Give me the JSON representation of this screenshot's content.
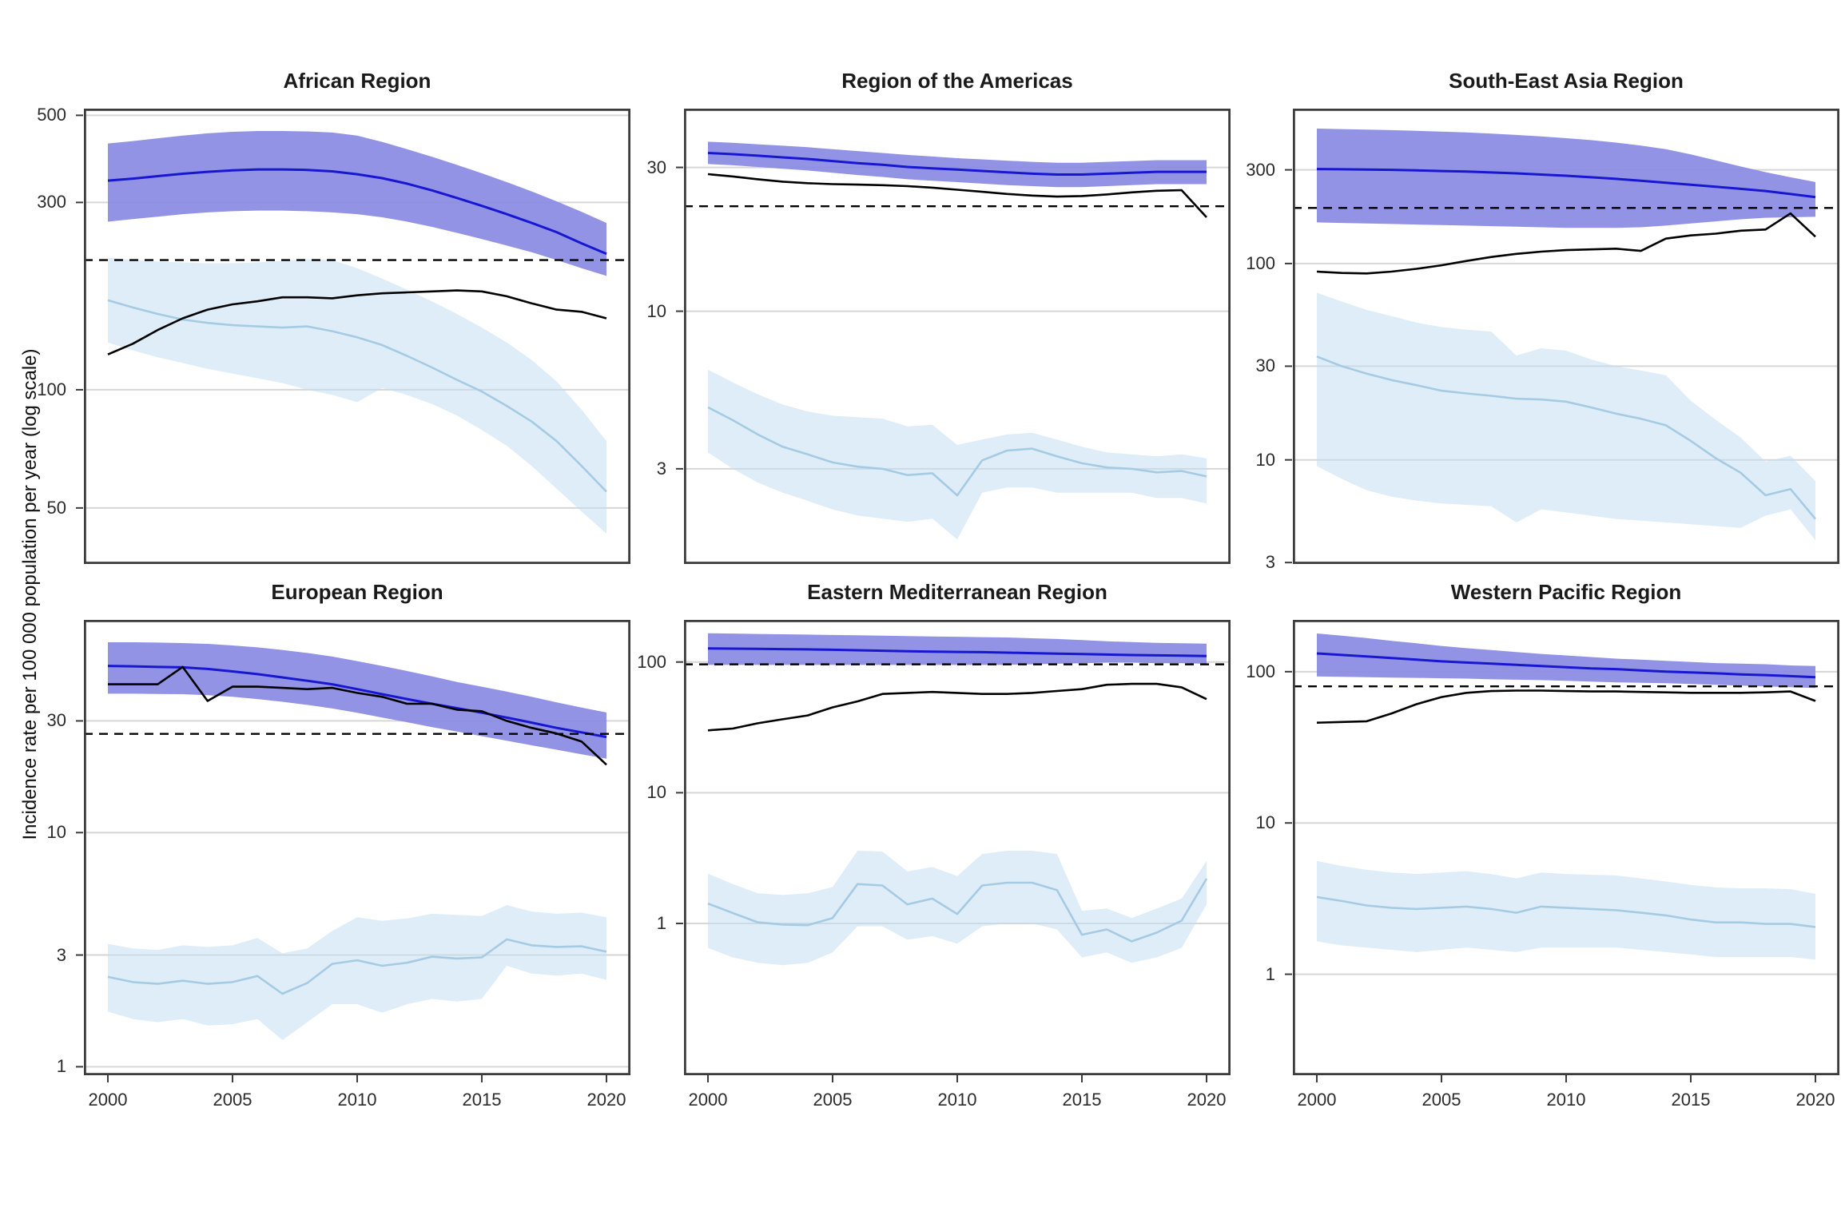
{
  "figure": {
    "y_axis_label": "Incidence rate per 100 000 population per year (log scale)",
    "years": [
      2000,
      2001,
      2002,
      2003,
      2004,
      2005,
      2006,
      2007,
      2008,
      2009,
      2010,
      2011,
      2012,
      2013,
      2014,
      2015,
      2016,
      2017,
      2018,
      2019,
      2020
    ],
    "x_ticks": [
      2000,
      2005,
      2010,
      2015,
      2020
    ],
    "colors": {
      "blue_line": "#1717d1",
      "blue_band": "#8a8ae4",
      "light_blue_line": "#a5cbe4",
      "light_blue_band": "#c4dff2",
      "black_line": "#000000",
      "dashed_line": "#000000",
      "gridline": "#d6d6d6",
      "panel_border": "#3c3c3c",
      "text": "#2b2b2b"
    }
  },
  "chart_data": [
    {
      "type": "line",
      "title": "African Region",
      "y_ticks": [
        500,
        300,
        100,
        50
      ],
      "y_domain": [
        36,
        520
      ],
      "x_range": [
        2000,
        2020
      ],
      "x_ticks": [
        2000,
        2005,
        2010,
        2015,
        2020
      ],
      "grid": "horizontal-only",
      "legend": "none",
      "dashed_reference": 214,
      "series": {
        "blue_line": [
          341,
          345,
          350,
          355,
          359,
          362,
          364,
          364,
          363,
          360,
          354,
          346,
          335,
          322,
          308,
          294,
          280,
          266,
          252,
          236,
          222
        ],
        "blue_band_upper": [
          424,
          430,
          437,
          444,
          450,
          454,
          456,
          456,
          455,
          452,
          444,
          428,
          410,
          392,
          374,
          356,
          338,
          320,
          302,
          284,
          266
        ],
        "blue_band_lower": [
          268,
          272,
          276,
          280,
          283,
          285,
          286,
          286,
          285,
          283,
          280,
          275,
          268,
          260,
          251,
          242,
          233,
          224,
          214,
          204,
          195
        ],
        "light_blue_line": [
          169,
          162,
          156,
          151,
          148,
          146,
          145,
          144,
          145,
          141,
          136,
          130,
          122,
          114,
          106,
          99,
          91,
          83,
          74,
          64,
          55
        ],
        "light_blue_band_upper": [
          217,
          214,
          212,
          211,
          210,
          210,
          211,
          213,
          215,
          214,
          204,
          192,
          180,
          168,
          156,
          144,
          132,
          119,
          105,
          89,
          74
        ],
        "light_blue_band_lower": [
          132,
          126,
          121,
          117,
          113,
          110,
          107,
          104,
          100,
          97,
          93,
          101,
          97,
          92,
          86,
          79,
          72,
          64,
          56,
          49,
          43
        ],
        "black_line": [
          123,
          131,
          142,
          152,
          160,
          165,
          168,
          172,
          172,
          171,
          174,
          176,
          177,
          178,
          179,
          178,
          173,
          166,
          160,
          158,
          152
        ]
      }
    },
    {
      "type": "line",
      "title": "Region of the Americas",
      "y_ticks": [
        30,
        10,
        3
      ],
      "y_domain": [
        1.45,
        47
      ],
      "x_range": [
        2000,
        2020
      ],
      "x_ticks": [
        2000,
        2005,
        2010,
        2015,
        2020
      ],
      "grid": "horizontal-only",
      "legend": "none",
      "dashed_reference": 22.3,
      "series": {
        "blue_line": [
          33.5,
          33.2,
          32.8,
          32.4,
          32.0,
          31.5,
          31.0,
          30.6,
          30.1,
          29.8,
          29.5,
          29.2,
          28.9,
          28.6,
          28.4,
          28.4,
          28.6,
          28.8,
          29.0,
          29.0,
          29.0
        ],
        "blue_band_upper": [
          36.5,
          36.2,
          35.8,
          35.4,
          35.0,
          34.5,
          34.0,
          33.5,
          33.0,
          32.6,
          32.2,
          31.9,
          31.6,
          31.3,
          31.1,
          31.1,
          31.3,
          31.5,
          31.7,
          31.7,
          31.7
        ],
        "blue_band_lower": [
          30.8,
          30.5,
          30.1,
          29.7,
          29.3,
          28.8,
          28.3,
          27.9,
          27.4,
          27.1,
          26.8,
          26.5,
          26.2,
          26.0,
          25.8,
          25.8,
          26.0,
          26.2,
          26.4,
          26.4,
          26.4
        ],
        "light_blue_line": [
          4.8,
          4.35,
          3.9,
          3.55,
          3.35,
          3.15,
          3.05,
          3.0,
          2.86,
          2.9,
          2.45,
          3.2,
          3.45,
          3.5,
          3.3,
          3.13,
          3.03,
          3.0,
          2.92,
          2.95,
          2.83
        ],
        "light_blue_band_upper": [
          6.4,
          5.8,
          5.3,
          4.9,
          4.65,
          4.5,
          4.45,
          4.4,
          4.15,
          4.2,
          3.6,
          3.75,
          3.9,
          3.95,
          3.75,
          3.55,
          3.4,
          3.35,
          3.3,
          3.35,
          3.25
        ],
        "light_blue_band_lower": [
          3.4,
          3.0,
          2.7,
          2.5,
          2.35,
          2.2,
          2.1,
          2.05,
          2.0,
          2.05,
          1.75,
          2.5,
          2.6,
          2.6,
          2.5,
          2.5,
          2.5,
          2.5,
          2.4,
          2.4,
          2.3
        ],
        "black_line": [
          28.5,
          28.0,
          27.4,
          26.9,
          26.6,
          26.4,
          26.3,
          26.2,
          26.0,
          25.7,
          25.3,
          24.9,
          24.5,
          24.2,
          24.0,
          24.1,
          24.4,
          24.8,
          25.1,
          25.2,
          20.5
        ]
      }
    },
    {
      "type": "line",
      "title": "South-East Asia Region",
      "y_ticks": [
        300,
        100,
        30,
        10,
        3
      ],
      "y_domain": [
        2.95,
        615
      ],
      "x_range": [
        2000,
        2020
      ],
      "x_ticks": [
        2000,
        2005,
        2010,
        2015,
        2020
      ],
      "grid": "horizontal-only",
      "legend": "none",
      "dashed_reference": 192,
      "series": {
        "blue_line": [
          303,
          302,
          301,
          300,
          298,
          296,
          294,
          291,
          288,
          284,
          280,
          275,
          270,
          264,
          258,
          252,
          246,
          240,
          234,
          226,
          218
        ],
        "blue_band_upper": [
          487,
          484,
          481,
          478,
          474,
          470,
          465,
          459,
          452,
          444,
          435,
          425,
          413,
          399,
          382,
          360,
          335,
          312,
          292,
          275,
          260
        ],
        "blue_band_lower": [
          162,
          161,
          160,
          159,
          158,
          157,
          156,
          155,
          154,
          153,
          152,
          152,
          152,
          153,
          156,
          160,
          164,
          168,
          171,
          172,
          173
        ],
        "light_blue_line": [
          33.6,
          30,
          27.5,
          25.5,
          24,
          22.5,
          21.8,
          21.2,
          20.5,
          20.3,
          19.8,
          18.5,
          17.2,
          16.2,
          15,
          12.5,
          10.2,
          8.6,
          6.6,
          7.1,
          5.0
        ],
        "light_blue_band_upper": [
          71,
          64,
          58,
          54,
          50,
          47.5,
          46,
          45,
          34,
          37,
          36,
          32.5,
          30,
          28.5,
          27,
          20,
          16,
          13,
          9.8,
          10.5,
          7.8
        ],
        "light_blue_band_lower": [
          9.3,
          8,
          7,
          6.5,
          6.2,
          6.0,
          5.9,
          5.8,
          4.8,
          5.6,
          5.4,
          5.2,
          5.0,
          4.9,
          4.8,
          4.7,
          4.6,
          4.5,
          5.2,
          5.6,
          3.9
        ],
        "black_line": [
          91,
          89.5,
          89,
          91,
          94,
          98,
          103,
          108,
          112,
          115,
          117,
          118,
          119,
          116,
          134,
          139,
          142,
          147,
          149,
          180,
          137
        ]
      }
    },
    {
      "type": "line",
      "title": "European Region",
      "y_ticks": [
        30,
        10,
        3,
        1
      ],
      "y_domain": [
        0.92,
        81
      ],
      "x_range": [
        2000,
        2020
      ],
      "x_ticks": [
        2000,
        2005,
        2010,
        2015,
        2020
      ],
      "grid": "horizontal-only",
      "legend": "none",
      "dashed_reference": 26.4,
      "series": {
        "blue_line": [
          51.5,
          51.3,
          51.0,
          50.8,
          50.0,
          48.8,
          47.5,
          46.0,
          44.5,
          43.0,
          41.0,
          39.0,
          37.2,
          35.5,
          34.0,
          32.5,
          31.0,
          29.5,
          28.0,
          26.8,
          25.6
        ],
        "blue_band_upper": [
          65,
          65,
          64.8,
          64.5,
          64,
          63,
          61.8,
          60.3,
          58.5,
          56.5,
          54,
          51.5,
          49,
          46.5,
          44,
          42,
          40,
          38,
          36,
          34.2,
          32.6
        ],
        "blue_band_lower": [
          39.2,
          39.2,
          39.1,
          39.0,
          38.6,
          38.0,
          37.2,
          36.2,
          35.1,
          33.9,
          32.5,
          31.0,
          29.6,
          28.2,
          27.0,
          25.8,
          24.7,
          23.6,
          22.6,
          21.6,
          20.7
        ],
        "light_blue_line": [
          2.42,
          2.3,
          2.26,
          2.33,
          2.26,
          2.3,
          2.44,
          2.05,
          2.28,
          2.75,
          2.85,
          2.7,
          2.78,
          2.95,
          2.9,
          2.93,
          3.5,
          3.3,
          3.25,
          3.27,
          3.1
        ],
        "light_blue_band_upper": [
          3.35,
          3.2,
          3.15,
          3.3,
          3.25,
          3.3,
          3.55,
          3.05,
          3.2,
          3.8,
          4.35,
          4.2,
          4.3,
          4.5,
          4.45,
          4.4,
          4.9,
          4.6,
          4.5,
          4.55,
          4.35
        ],
        "light_blue_band_lower": [
          1.72,
          1.6,
          1.55,
          1.6,
          1.5,
          1.52,
          1.6,
          1.3,
          1.55,
          1.85,
          1.85,
          1.7,
          1.85,
          1.95,
          1.9,
          1.95,
          2.7,
          2.5,
          2.45,
          2.5,
          2.35
        ],
        "black_line": [
          43,
          43,
          43,
          51,
          36.5,
          42,
          42,
          41.5,
          41,
          41.5,
          39.5,
          38,
          35.5,
          35.5,
          33.5,
          33,
          30,
          28,
          26.5,
          24.5,
          19.5
        ]
      }
    },
    {
      "type": "line",
      "title": "Eastern Mediterranean Region",
      "y_ticks": [
        100,
        10,
        1
      ],
      "y_domain": [
        0.069,
        210
      ],
      "x_range": [
        2000,
        2020
      ],
      "x_ticks": [
        2000,
        2005,
        2010,
        2015,
        2020
      ],
      "grid": "horizontal-only",
      "legend": "none",
      "dashed_reference": 96,
      "series": {
        "blue_line": [
          127,
          126.5,
          126,
          125.5,
          125,
          124,
          123,
          122,
          121,
          120,
          119.5,
          119,
          118,
          117,
          116,
          115,
          114,
          113,
          112.5,
          112,
          111
        ],
        "blue_band_upper": [
          166,
          165,
          164,
          163,
          162,
          161,
          160,
          159,
          158,
          157,
          156,
          155,
          154,
          152,
          150,
          147,
          144,
          142,
          140,
          139,
          138
        ],
        "blue_band_lower": [
          95,
          95,
          95,
          95,
          95,
          95,
          95,
          95,
          95,
          95,
          95,
          95,
          95,
          96,
          97,
          98,
          99,
          99,
          98,
          98,
          97
        ],
        "light_blue_line": [
          1.42,
          1.2,
          1.02,
          0.98,
          0.97,
          1.1,
          2.0,
          1.95,
          1.4,
          1.55,
          1.18,
          1.95,
          2.05,
          2.05,
          1.8,
          0.82,
          0.9,
          0.73,
          0.85,
          1.05,
          2.2
        ],
        "light_blue_band_upper": [
          2.4,
          2.0,
          1.7,
          1.65,
          1.7,
          1.9,
          3.6,
          3.55,
          2.5,
          2.7,
          2.3,
          3.4,
          3.6,
          3.6,
          3.4,
          1.25,
          1.3,
          1.1,
          1.3,
          1.55,
          3.0
        ],
        "light_blue_band_lower": [
          0.65,
          0.55,
          0.5,
          0.48,
          0.5,
          0.6,
          0.95,
          0.95,
          0.75,
          0.8,
          0.7,
          0.95,
          1.0,
          1.0,
          0.9,
          0.55,
          0.6,
          0.5,
          0.55,
          0.65,
          1.4
        ],
        "black_line": [
          30,
          31,
          34,
          36.5,
          39,
          45,
          50,
          57,
          58,
          59,
          58,
          57,
          57,
          58,
          60,
          62,
          67,
          68,
          68,
          64,
          52
        ]
      }
    },
    {
      "type": "line",
      "title": "Western Pacific Region",
      "y_ticks": [
        100,
        10,
        1
      ],
      "y_domain": [
        0.215,
        220
      ],
      "x_range": [
        2000,
        2020
      ],
      "x_ticks": [
        2000,
        2005,
        2010,
        2015,
        2020
      ],
      "grid": "horizontal-only",
      "legend": "none",
      "dashed_reference": 80,
      "series": {
        "blue_line": [
          132,
          129,
          126,
          123,
          120,
          117,
          115,
          113,
          111,
          109,
          107,
          105,
          104,
          102,
          100,
          99,
          97.5,
          96,
          95,
          93.5,
          92
        ],
        "blue_band_upper": [
          179,
          173,
          167,
          160,
          154,
          148,
          143,
          139,
          135,
          131,
          128,
          125,
          122,
          120,
          118,
          116,
          114,
          113,
          112,
          110,
          109
        ],
        "blue_band_lower": [
          93,
          92.5,
          92,
          91.5,
          91,
          90.5,
          90,
          89,
          88.5,
          88,
          87,
          86,
          85,
          84.5,
          84,
          83,
          82,
          81,
          80,
          79,
          78
        ],
        "light_blue_line": [
          3.24,
          3.05,
          2.85,
          2.75,
          2.7,
          2.75,
          2.8,
          2.7,
          2.55,
          2.8,
          2.75,
          2.7,
          2.65,
          2.55,
          2.45,
          2.3,
          2.2,
          2.2,
          2.15,
          2.15,
          2.05
        ],
        "light_blue_band_upper": [
          5.6,
          5.2,
          4.9,
          4.7,
          4.6,
          4.7,
          4.8,
          4.6,
          4.3,
          4.7,
          4.6,
          4.55,
          4.5,
          4.3,
          4.1,
          3.9,
          3.75,
          3.7,
          3.7,
          3.65,
          3.4
        ],
        "light_blue_band_lower": [
          1.65,
          1.55,
          1.5,
          1.45,
          1.4,
          1.45,
          1.5,
          1.45,
          1.4,
          1.5,
          1.5,
          1.5,
          1.5,
          1.45,
          1.4,
          1.35,
          1.3,
          1.3,
          1.3,
          1.3,
          1.25
        ],
        "black_line": [
          46,
          46.5,
          47,
          53,
          61,
          68,
          72.5,
          74.5,
          75,
          75,
          74.5,
          74,
          74,
          73.5,
          73,
          72.5,
          72.5,
          72.5,
          73,
          74,
          64
        ]
      }
    }
  ]
}
